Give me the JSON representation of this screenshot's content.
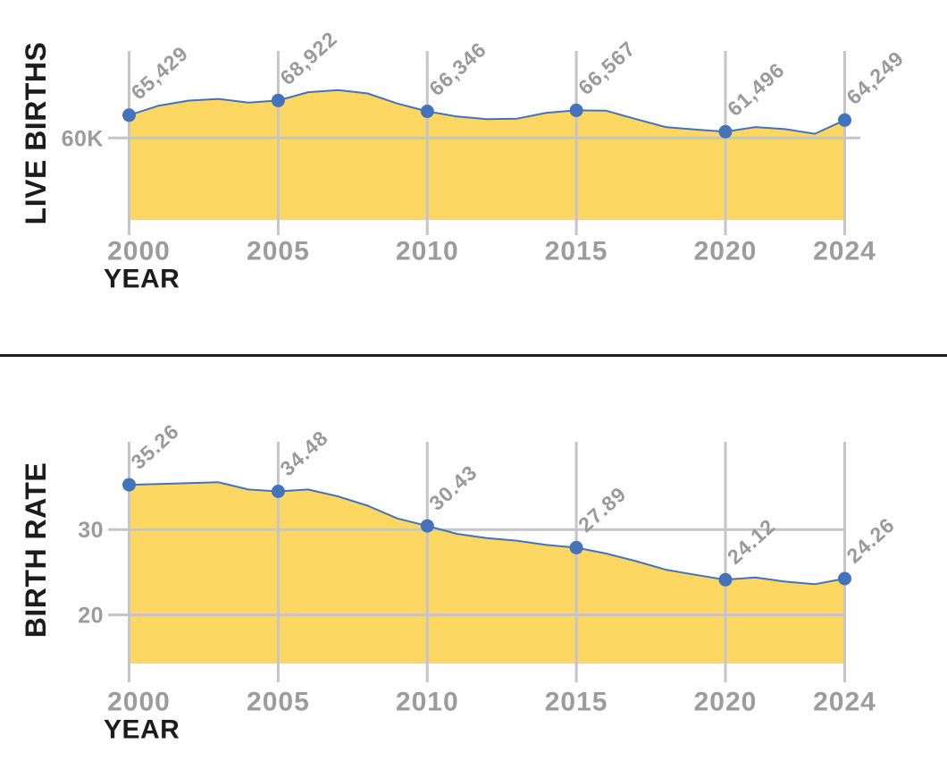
{
  "colors": {
    "area_fill": "#FCD863",
    "line": "#4472BB",
    "dot": "#4472BB",
    "gridline": "#C5C5C5",
    "divider": "#1E1E1E",
    "axis_title_text": "#1C1C1C",
    "tick_label_text": "#9C9C9C",
    "data_label_text": "#9A9A9A",
    "background": "#FFFFFF"
  },
  "chart_data": [
    {
      "type": "area",
      "title": "",
      "ylabel": "LIVE BIRTHS",
      "xlabel": "YEAR",
      "xlim": [
        2000,
        2024
      ],
      "ylim": [
        40500,
        80700
      ],
      "grid": true,
      "legend": "none",
      "x": [
        2000,
        2001,
        2002,
        2003,
        2004,
        2005,
        2006,
        2007,
        2008,
        2009,
        2010,
        2011,
        2012,
        2013,
        2014,
        2015,
        2016,
        2017,
        2018,
        2019,
        2020,
        2021,
        2022,
        2023,
        2024
      ],
      "values": [
        65429,
        67700,
        68900,
        69300,
        68400,
        68922,
        70900,
        71400,
        70600,
        68200,
        66346,
        65100,
        64500,
        64600,
        66000,
        66567,
        66500,
        64500,
        62600,
        62000,
        61496,
        62600,
        62100,
        61000,
        64249
      ],
      "points": [
        {
          "x": 2000,
          "y": 65429,
          "label": "65,429"
        },
        {
          "x": 2005,
          "y": 68922,
          "label": "68,922"
        },
        {
          "x": 2010,
          "y": 66346,
          "label": "66,346"
        },
        {
          "x": 2015,
          "y": 66567,
          "label": "66,567"
        },
        {
          "x": 2020,
          "y": 61496,
          "label": "61,496"
        },
        {
          "x": 2024,
          "y": 64249,
          "label": "64,249"
        }
      ],
      "x_ticks": [
        {
          "x": 2000,
          "label": "2000"
        },
        {
          "x": 2005,
          "label": "2005"
        },
        {
          "x": 2010,
          "label": "2010"
        },
        {
          "x": 2015,
          "label": "2015"
        },
        {
          "x": 2020,
          "label": "2020"
        },
        {
          "x": 2024,
          "label": "2024"
        }
      ],
      "y_gridlines": [
        {
          "value": 60000,
          "label": "60K"
        }
      ]
    },
    {
      "type": "area",
      "title": "",
      "ylabel": "BIRTH RATE",
      "xlabel": "YEAR",
      "xlim": [
        2000,
        2024
      ],
      "ylim": [
        14.3,
        40.3
      ],
      "grid": true,
      "legend": "none",
      "x": [
        2000,
        2001,
        2002,
        2003,
        2004,
        2005,
        2006,
        2007,
        2008,
        2009,
        2010,
        2011,
        2012,
        2013,
        2014,
        2015,
        2016,
        2017,
        2018,
        2019,
        2020,
        2021,
        2022,
        2023,
        2024
      ],
      "values": [
        35.26,
        35.35,
        35.45,
        35.55,
        34.7,
        34.48,
        34.7,
        33.9,
        32.8,
        31.3,
        30.43,
        29.5,
        29,
        28.7,
        28.2,
        27.89,
        27.2,
        26.3,
        25.3,
        24.7,
        24.12,
        24.4,
        23.9,
        23.6,
        24.26
      ],
      "points": [
        {
          "x": 2000,
          "y": 35.26,
          "label": "35.26"
        },
        {
          "x": 2005,
          "y": 34.48,
          "label": "34.48"
        },
        {
          "x": 2010,
          "y": 30.43,
          "label": "30.43"
        },
        {
          "x": 2015,
          "y": 27.89,
          "label": "27.89"
        },
        {
          "x": 2020,
          "y": 24.12,
          "label": "24.12"
        },
        {
          "x": 2024,
          "y": 24.26,
          "label": "24.26"
        }
      ],
      "x_ticks": [
        {
          "x": 2000,
          "label": "2000"
        },
        {
          "x": 2005,
          "label": "2005"
        },
        {
          "x": 2010,
          "label": "2010"
        },
        {
          "x": 2015,
          "label": "2015"
        },
        {
          "x": 2020,
          "label": "2020"
        },
        {
          "x": 2024,
          "label": "2024"
        }
      ],
      "y_gridlines": [
        {
          "value": 30,
          "label": "30"
        },
        {
          "value": 20,
          "label": "20"
        }
      ]
    }
  ]
}
